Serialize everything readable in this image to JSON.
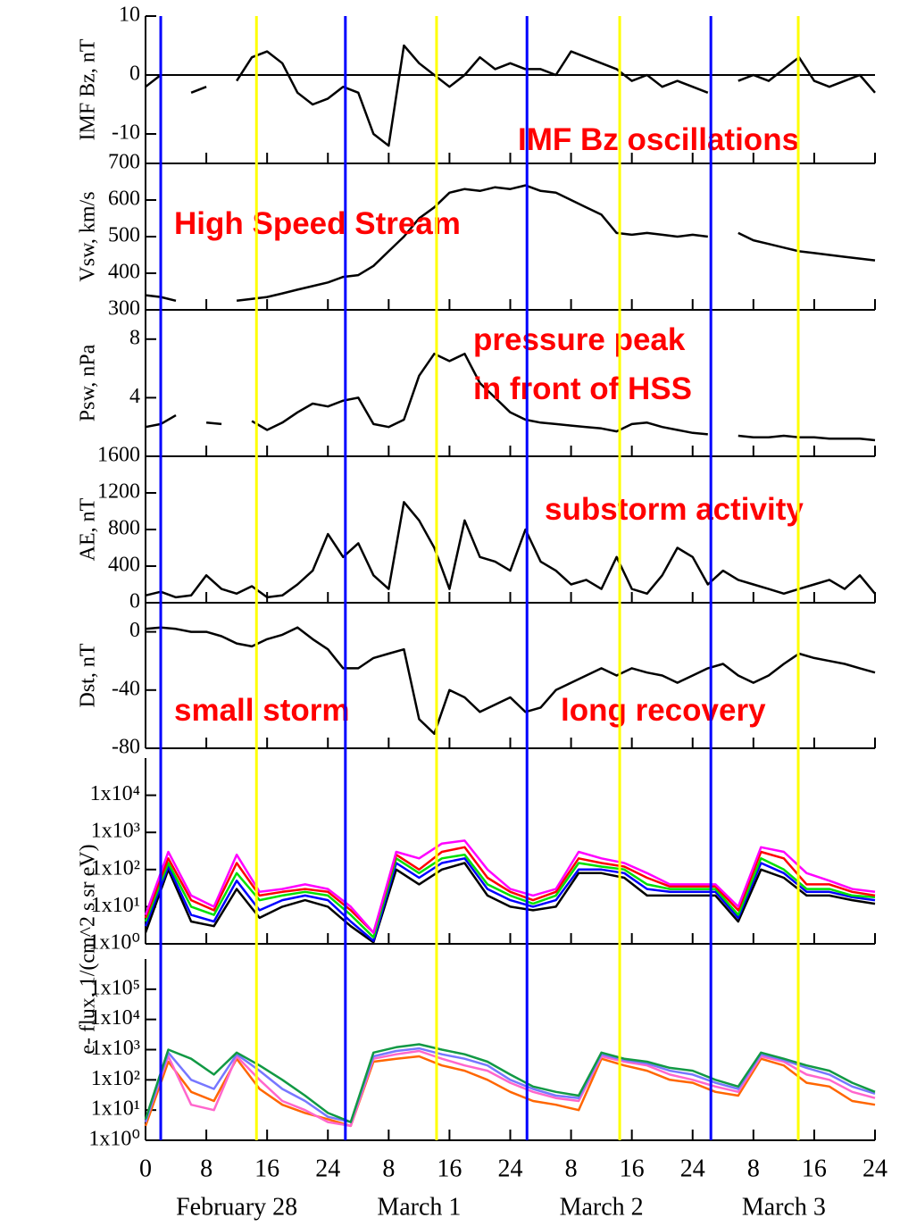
{
  "chart_data": [
    {
      "type": "line",
      "ylabel": "IMF Bz, nT",
      "annotations": [
        "IMF Bz oscillations"
      ],
      "ylim": [
        -15,
        10
      ],
      "yticks": [
        10,
        0,
        -10
      ],
      "zero_line": true,
      "x": [
        0,
        2,
        4,
        6,
        8,
        10,
        12,
        14,
        16,
        18,
        20,
        22,
        24,
        26,
        28,
        30,
        32,
        34,
        36,
        38,
        40,
        42,
        44,
        46,
        48,
        50,
        52,
        54,
        56,
        58,
        60,
        62,
        64,
        66,
        68,
        70,
        72,
        74,
        76,
        78,
        80,
        82,
        84,
        86,
        88,
        90,
        92,
        94,
        96
      ],
      "series": [
        {
          "name": "Bz",
          "color": "#000000",
          "values": [
            -2,
            0,
            null,
            -3,
            -2,
            null,
            -1,
            3,
            4,
            2,
            -3,
            -5,
            -4,
            -2,
            -3,
            -10,
            -12,
            5,
            2,
            0,
            -2,
            0,
            3,
            1,
            2,
            1,
            1,
            0,
            4,
            3,
            2,
            1,
            -1,
            0,
            -2,
            -1,
            -2,
            -3,
            null,
            -1,
            0,
            -1,
            1,
            3,
            -1,
            -2,
            -1,
            0,
            -3
          ]
        }
      ]
    },
    {
      "type": "line",
      "ylabel": "Vsw, km/s",
      "annotations": [
        "High Speed Stream"
      ],
      "ylim": [
        300,
        700
      ],
      "yticks": [
        300,
        400,
        500,
        600,
        700
      ],
      "x": [
        0,
        2,
        4,
        6,
        8,
        10,
        12,
        14,
        16,
        18,
        20,
        22,
        24,
        26,
        28,
        30,
        32,
        34,
        36,
        38,
        40,
        42,
        44,
        46,
        48,
        50,
        52,
        54,
        56,
        58,
        60,
        62,
        64,
        66,
        68,
        70,
        72,
        74,
        76,
        78,
        80,
        82,
        84,
        86,
        88,
        90,
        92,
        94,
        96
      ],
      "series": [
        {
          "name": "Vsw",
          "color": "#000000",
          "values": [
            340,
            335,
            325,
            null,
            330,
            null,
            325,
            330,
            335,
            345,
            355,
            365,
            375,
            390,
            395,
            420,
            460,
            500,
            550,
            580,
            620,
            630,
            625,
            635,
            630,
            640,
            625,
            620,
            600,
            580,
            560,
            510,
            505,
            510,
            505,
            500,
            505,
            500,
            null,
            510,
            490,
            480,
            470,
            460,
            455,
            450,
            445,
            440,
            435
          ]
        }
      ]
    },
    {
      "type": "line",
      "ylabel": "Psw, nPa",
      "annotations": [
        "pressure peak",
        "in front of HSS"
      ],
      "ylim": [
        0,
        10
      ],
      "yticks": [
        4,
        8
      ],
      "x": [
        0,
        2,
        4,
        6,
        8,
        10,
        12,
        14,
        16,
        18,
        20,
        22,
        24,
        26,
        28,
        30,
        32,
        34,
        36,
        38,
        40,
        42,
        44,
        46,
        48,
        50,
        52,
        54,
        56,
        58,
        60,
        62,
        64,
        66,
        68,
        70,
        72,
        74,
        76,
        78,
        80,
        82,
        84,
        86,
        88,
        90,
        92,
        94,
        96
      ],
      "series": [
        {
          "name": "Psw",
          "color": "#000000",
          "values": [
            2,
            2.2,
            2.8,
            null,
            2.3,
            2.2,
            null,
            2.4,
            1.8,
            2.3,
            3,
            3.6,
            3.4,
            3.8,
            4,
            2.2,
            2,
            2.5,
            5.5,
            7,
            6.5,
            7,
            5,
            4,
            3,
            2.5,
            2.3,
            2.2,
            2.1,
            2,
            1.9,
            1.7,
            2.2,
            2.3,
            2,
            1.8,
            1.6,
            1.5,
            null,
            1.4,
            1.3,
            1.3,
            1.4,
            1.3,
            1.3,
            1.2,
            1.2,
            1.2,
            1.1
          ]
        }
      ]
    },
    {
      "type": "line",
      "ylabel": "AE, nT",
      "annotations": [
        "substorm activity"
      ],
      "ylim": [
        0,
        1600
      ],
      "yticks": [
        0,
        400,
        800,
        1200,
        1600
      ],
      "x": [
        0,
        2,
        4,
        6,
        8,
        10,
        12,
        14,
        16,
        18,
        20,
        22,
        24,
        26,
        28,
        30,
        32,
        34,
        36,
        38,
        40,
        42,
        44,
        46,
        48,
        50,
        52,
        54,
        56,
        58,
        60,
        62,
        64,
        66,
        68,
        70,
        72,
        74,
        76,
        78,
        80,
        82,
        84,
        86,
        88,
        90,
        92,
        94,
        96
      ],
      "series": [
        {
          "name": "AE",
          "color": "#000000",
          "values": [
            80,
            120,
            60,
            80,
            300,
            150,
            100,
            180,
            60,
            80,
            200,
            350,
            750,
            500,
            650,
            300,
            150,
            1100,
            900,
            600,
            150,
            900,
            500,
            450,
            350,
            800,
            450,
            350,
            200,
            250,
            150,
            500,
            150,
            100,
            300,
            600,
            500,
            200,
            350,
            250,
            200,
            150,
            100,
            150,
            200,
            250,
            150,
            300,
            100
          ]
        }
      ]
    },
    {
      "type": "line",
      "ylabel": "Dst, nT",
      "annotations": [
        "small storm",
        "long recovery"
      ],
      "ylim": [
        -80,
        20
      ],
      "yticks": [
        -80,
        -40,
        0
      ],
      "x": [
        0,
        2,
        4,
        6,
        8,
        10,
        12,
        14,
        16,
        18,
        20,
        22,
        24,
        26,
        28,
        30,
        32,
        34,
        36,
        38,
        40,
        42,
        44,
        46,
        48,
        50,
        52,
        54,
        56,
        58,
        60,
        62,
        64,
        66,
        68,
        70,
        72,
        74,
        76,
        78,
        80,
        82,
        84,
        86,
        88,
        90,
        92,
        94,
        96
      ],
      "series": [
        {
          "name": "Dst",
          "color": "#000000",
          "values": [
            2,
            3,
            2,
            0,
            0,
            -3,
            -8,
            -10,
            -5,
            -2,
            3,
            -5,
            -12,
            -25,
            -25,
            -18,
            -15,
            -12,
            -60,
            -70,
            -40,
            -45,
            -55,
            -50,
            -45,
            -55,
            -52,
            -40,
            -35,
            -30,
            -25,
            -30,
            -25,
            -28,
            -30,
            -35,
            -30,
            -25,
            -22,
            -30,
            -35,
            -30,
            -22,
            -15,
            -18,
            -20,
            -22,
            -25,
            -28
          ]
        }
      ]
    },
    {
      "type": "line",
      "ylabel": "e- flux, 1/(cm^2 s sr eV)",
      "log_scale": true,
      "ylim": [
        1,
        100000
      ],
      "yticks": [
        {
          "value": 1,
          "label": "1x10⁰"
        },
        {
          "value": 10,
          "label": "1x10¹"
        },
        {
          "value": 100,
          "label": "1x10²"
        },
        {
          "value": 1000,
          "label": "1x10³"
        },
        {
          "value": 10000,
          "label": "1x10⁴"
        }
      ],
      "x": [
        0,
        3,
        6,
        9,
        12,
        15,
        18,
        21,
        24,
        27,
        30,
        33,
        36,
        39,
        42,
        45,
        48,
        51,
        54,
        57,
        60,
        63,
        66,
        69,
        72,
        75,
        78,
        81,
        84,
        87,
        90,
        93,
        96
      ],
      "series": [
        {
          "name": "black",
          "color": "#000000",
          "values": [
            2,
            100,
            4,
            3,
            30,
            5,
            10,
            15,
            10,
            3,
            1.1,
            100,
            40,
            100,
            150,
            20,
            10,
            8,
            10,
            80,
            80,
            60,
            20,
            20,
            20,
            20,
            4,
            100,
            60,
            20,
            20,
            15,
            12
          ]
        },
        {
          "name": "blue",
          "color": "#0000ff",
          "values": [
            3,
            120,
            6,
            4,
            50,
            8,
            15,
            20,
            15,
            4,
            1.2,
            150,
            60,
            150,
            200,
            30,
            15,
            10,
            15,
            100,
            100,
            80,
            30,
            25,
            25,
            25,
            5,
            150,
            80,
            25,
            25,
            18,
            15
          ]
        },
        {
          "name": "green",
          "color": "#00e000",
          "values": [
            4,
            150,
            10,
            6,
            80,
            15,
            20,
            25,
            20,
            6,
            1.5,
            200,
            80,
            200,
            250,
            40,
            20,
            12,
            20,
            150,
            120,
            100,
            40,
            30,
            30,
            30,
            6,
            200,
            100,
            30,
            30,
            20,
            18
          ]
        },
        {
          "name": "red",
          "color": "#ff0000",
          "values": [
            5,
            200,
            15,
            8,
            150,
            20,
            25,
            30,
            25,
            8,
            2,
            250,
            100,
            300,
            400,
            60,
            25,
            15,
            25,
            200,
            150,
            120,
            60,
            35,
            35,
            35,
            8,
            300,
            200,
            40,
            40,
            25,
            20
          ]
        },
        {
          "name": "magenta",
          "color": "#ff00ff",
          "values": [
            6,
            300,
            20,
            10,
            250,
            25,
            30,
            40,
            30,
            10,
            2,
            300,
            200,
            500,
            600,
            100,
            30,
            20,
            30,
            300,
            200,
            150,
            80,
            40,
            40,
            40,
            10,
            400,
            300,
            80,
            50,
            30,
            25
          ]
        }
      ]
    },
    {
      "type": "line",
      "log_scale": true,
      "ylim": [
        1,
        1000000
      ],
      "yticks": [
        {
          "value": 1,
          "label": "1x10⁰"
        },
        {
          "value": 10,
          "label": "1x10¹"
        },
        {
          "value": 100,
          "label": "1x10²"
        },
        {
          "value": 1000,
          "label": "1x10³"
        },
        {
          "value": 10000,
          "label": "1x10⁴"
        },
        {
          "value": 100000,
          "label": "1x10⁵"
        }
      ],
      "x": [
        0,
        3,
        6,
        9,
        12,
        15,
        18,
        21,
        24,
        27,
        30,
        33,
        36,
        39,
        42,
        45,
        48,
        51,
        54,
        57,
        60,
        63,
        66,
        69,
        72,
        75,
        78,
        81,
        84,
        87,
        90,
        93,
        96
      ],
      "series": [
        {
          "name": "orange",
          "color": "#ff6600",
          "values": [
            3,
            400,
            40,
            20,
            500,
            50,
            15,
            8,
            5,
            3,
            400,
            500,
            600,
            300,
            200,
            100,
            40,
            20,
            15,
            10,
            500,
            300,
            200,
            100,
            80,
            40,
            30,
            500,
            300,
            80,
            60,
            20,
            15
          ]
        },
        {
          "name": "pink",
          "color": "#ff66cc",
          "values": [
            4,
            600,
            15,
            10,
            600,
            100,
            20,
            10,
            4,
            3,
            500,
            700,
            900,
            500,
            300,
            200,
            80,
            40,
            25,
            20,
            600,
            400,
            300,
            150,
            100,
            60,
            40,
            600,
            400,
            150,
            100,
            40,
            25
          ]
        },
        {
          "name": "violet",
          "color": "#7777ff",
          "values": [
            4,
            800,
            100,
            50,
            700,
            200,
            50,
            20,
            6,
            4,
            600,
            900,
            1100,
            700,
            500,
            300,
            100,
            50,
            30,
            25,
            700,
            450,
            350,
            200,
            150,
            80,
            50,
            700,
            450,
            250,
            150,
            60,
            35
          ]
        },
        {
          "name": "green",
          "color": "#119944",
          "values": [
            5,
            1000,
            500,
            150,
            800,
            300,
            100,
            30,
            8,
            4,
            800,
            1200,
            1500,
            1000,
            700,
            400,
            150,
            60,
            40,
            30,
            800,
            500,
            400,
            250,
            200,
            100,
            60,
            800,
            500,
            300,
            200,
            80,
            40
          ]
        }
      ],
      "xlim": [
        0,
        96
      ],
      "xticks": [
        {
          "value": 0,
          "label": "0"
        },
        {
          "value": 8,
          "label": "8"
        },
        {
          "value": 16,
          "label": "16"
        },
        {
          "value": 24,
          "label": "24"
        },
        {
          "value": 32,
          "label": "8"
        },
        {
          "value": 40,
          "label": "16"
        },
        {
          "value": 48,
          "label": "24"
        },
        {
          "value": 56,
          "label": "8"
        },
        {
          "value": 64,
          "label": "16"
        },
        {
          "value": 72,
          "label": "24"
        },
        {
          "value": 80,
          "label": "8"
        },
        {
          "value": 88,
          "label": "16"
        },
        {
          "value": 96,
          "label": "24"
        }
      ],
      "day_labels": [
        {
          "value": 12,
          "label": "February 28"
        },
        {
          "value": 36,
          "label": "March 1"
        },
        {
          "value": 60,
          "label": "March 2"
        },
        {
          "value": 84,
          "label": "March 3"
        }
      ],
      "vlines": [
        {
          "color": "#0000ff",
          "x": [
            2,
            26.3,
            50.2,
            74.4
          ]
        },
        {
          "color": "#ffff00",
          "x": [
            14.6,
            38.3,
            62.4,
            85.9
          ]
        }
      ]
    }
  ]
}
